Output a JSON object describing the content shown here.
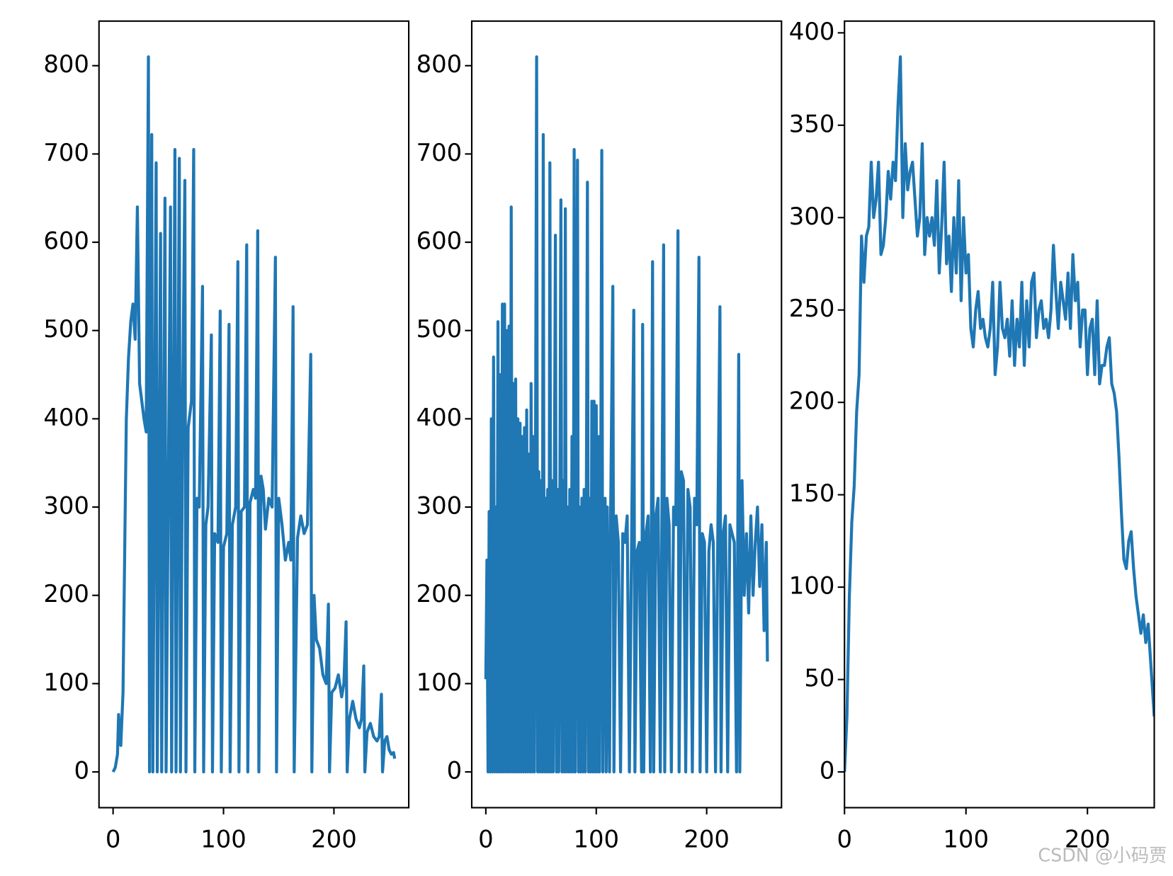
{
  "chart_data": [
    {
      "type": "line",
      "color": "#1f77b4",
      "xlim": [
        -12.75,
        267.75
      ],
      "ylim": [
        -40.5,
        850.5
      ],
      "xticks": [
        0,
        100,
        200
      ],
      "yticks": [
        0,
        100,
        200,
        300,
        400,
        500,
        600,
        700,
        800
      ],
      "x": [
        0,
        2,
        4,
        5,
        7,
        9,
        11,
        12,
        14,
        16,
        18,
        20,
        22,
        24,
        26,
        28,
        30,
        32,
        33,
        35,
        36,
        39,
        40,
        43,
        44,
        47,
        48,
        52,
        53,
        56,
        57,
        60,
        61,
        63,
        65,
        66,
        68,
        71,
        73,
        74,
        76,
        78,
        81,
        82,
        84,
        86,
        89,
        90,
        92,
        95,
        97,
        98,
        100,
        103,
        105,
        106,
        108,
        111,
        113,
        114,
        116,
        119,
        121,
        122,
        124,
        127,
        129,
        131,
        132,
        134,
        136,
        138,
        141,
        144,
        147,
        148,
        150,
        153,
        156,
        159,
        161,
        163,
        164,
        167,
        170,
        173,
        176,
        179,
        180,
        182,
        184,
        187,
        190,
        193,
        195,
        196,
        198,
        201,
        204,
        207,
        209,
        211,
        212,
        214,
        217,
        220,
        223,
        225,
        227,
        228,
        230,
        233,
        236,
        239,
        241,
        243,
        244,
        246,
        248,
        250,
        252,
        254,
        255
      ],
      "values": [
        0,
        5,
        20,
        65,
        30,
        90,
        300,
        400,
        470,
        510,
        530,
        490,
        640,
        440,
        420,
        400,
        385,
        810,
        0,
        722,
        0,
        690,
        0,
        610,
        0,
        650,
        0,
        640,
        0,
        705,
        0,
        695,
        0,
        420,
        670,
        0,
        390,
        420,
        705,
        0,
        310,
        300,
        550,
        0,
        280,
        300,
        495,
        0,
        270,
        260,
        522,
        0,
        255,
        270,
        507,
        0,
        280,
        300,
        578,
        0,
        295,
        300,
        597,
        0,
        305,
        320,
        310,
        613,
        0,
        335,
        320,
        275,
        310,
        300,
        583,
        0,
        310,
        280,
        240,
        260,
        240,
        527,
        0,
        265,
        290,
        270,
        280,
        473,
        0,
        200,
        150,
        140,
        110,
        100,
        190,
        0,
        90,
        95,
        110,
        85,
        100,
        170,
        0,
        60,
        80,
        60,
        50,
        60,
        120,
        0,
        45,
        55,
        40,
        35,
        40,
        88,
        0,
        35,
        40,
        25,
        20,
        22,
        15
      ]
    },
    {
      "type": "line",
      "color": "#1f77b4",
      "xlim": [
        -12.75,
        267.75
      ],
      "ylim": [
        -40.5,
        850.5
      ],
      "xticks": [
        0,
        100,
        200
      ],
      "yticks": [
        0,
        100,
        200,
        300,
        400,
        500,
        600,
        700,
        800
      ],
      "x": [
        0,
        1,
        2,
        3,
        4,
        5,
        6,
        7,
        8,
        9,
        10,
        11,
        12,
        13,
        14,
        15,
        16,
        17,
        18,
        19,
        20,
        21,
        22,
        23,
        24,
        25,
        26,
        27,
        28,
        29,
        30,
        31,
        32,
        33,
        34,
        35,
        36,
        37,
        38,
        39,
        40,
        41,
        42,
        43,
        44,
        45,
        46,
        47,
        48,
        49,
        50,
        51,
        52,
        53,
        54,
        55,
        56,
        57,
        58,
        59,
        60,
        61,
        62,
        63,
        64,
        65,
        66,
        67,
        68,
        69,
        70,
        71,
        72,
        73,
        74,
        75,
        76,
        77,
        78,
        79,
        80,
        81,
        82,
        83,
        84,
        85,
        86,
        87,
        88,
        89,
        90,
        91,
        92,
        93,
        94,
        95,
        96,
        97,
        98,
        99,
        100,
        101,
        102,
        103,
        104,
        105,
        106,
        107,
        108,
        109,
        110,
        112,
        113,
        115,
        116,
        118,
        120,
        122,
        124,
        126,
        128,
        130,
        132,
        134,
        135,
        137,
        139,
        141,
        142,
        143,
        145,
        147,
        149,
        151,
        152,
        154,
        156,
        158,
        161,
        162,
        164,
        166,
        168,
        170,
        172,
        174,
        175,
        177,
        179,
        181,
        183,
        185,
        187,
        189,
        191,
        193,
        194,
        196,
        198,
        200,
        202,
        204,
        206,
        208,
        210,
        212,
        213,
        215,
        217,
        219,
        221,
        223,
        225,
        227,
        229,
        230,
        232,
        234,
        236,
        238,
        240,
        242,
        244,
        246,
        248,
        250,
        252,
        254,
        255
      ],
      "values": [
        105,
        240,
        0,
        295,
        0,
        400,
        0,
        470,
        0,
        300,
        0,
        510,
        0,
        450,
        0,
        530,
        0,
        530,
        0,
        500,
        0,
        505,
        0,
        640,
        0,
        440,
        0,
        445,
        0,
        400,
        0,
        395,
        0,
        380,
        0,
        390,
        0,
        410,
        0,
        360,
        0,
        440,
        0,
        380,
        0,
        360,
        810,
        0,
        340,
        0,
        330,
        0,
        722,
        0,
        310,
        0,
        320,
        0,
        690,
        0,
        330,
        0,
        300,
        608,
        0,
        320,
        0,
        300,
        648,
        0,
        330,
        0,
        638,
        0,
        300,
        0,
        320,
        0,
        380,
        0,
        705,
        0,
        320,
        693,
        0,
        300,
        0,
        310,
        0,
        320,
        0,
        300,
        668,
        0,
        310,
        0,
        420,
        0,
        420,
        0,
        415,
        0,
        380,
        0,
        300,
        704,
        0,
        300,
        310,
        0,
        300,
        0,
        290,
        550,
        0,
        290,
        260,
        0,
        270,
        260,
        290,
        0,
        260,
        523,
        0,
        250,
        260,
        0,
        507,
        0,
        270,
        290,
        0,
        578,
        0,
        290,
        310,
        0,
        597,
        0,
        310,
        280,
        0,
        300,
        280,
        613,
        0,
        340,
        330,
        0,
        320,
        300,
        0,
        310,
        280,
        583,
        0,
        270,
        260,
        0,
        250,
        280,
        260,
        0,
        260,
        527,
        0,
        270,
        290,
        0,
        280,
        270,
        260,
        0,
        473,
        0,
        330,
        200,
        270,
        180,
        290,
        200,
        260,
        300,
        210,
        280,
        160,
        260,
        125
      ]
    },
    {
      "type": "line",
      "color": "#1f77b4",
      "xlim": [
        0,
        255
      ],
      "ylim": [
        -19.35,
        406.35
      ],
      "xticks": [
        0,
        100,
        200
      ],
      "yticks": [
        0,
        50,
        100,
        150,
        200,
        250,
        300,
        350,
        400
      ],
      "x": [
        0,
        2,
        4,
        6,
        8,
        10,
        12,
        14,
        16,
        18,
        20,
        22,
        24,
        26,
        28,
        30,
        32,
        34,
        36,
        38,
        40,
        42,
        44,
        46,
        48,
        50,
        52,
        54,
        56,
        58,
        60,
        62,
        64,
        66,
        68,
        70,
        72,
        74,
        76,
        78,
        80,
        82,
        84,
        86,
        88,
        90,
        92,
        94,
        96,
        98,
        100,
        102,
        104,
        106,
        108,
        110,
        112,
        114,
        116,
        118,
        120,
        122,
        124,
        126,
        128,
        130,
        132,
        134,
        136,
        138,
        140,
        142,
        144,
        146,
        148,
        150,
        152,
        154,
        156,
        158,
        160,
        162,
        164,
        166,
        168,
        170,
        172,
        174,
        176,
        178,
        180,
        182,
        184,
        186,
        188,
        190,
        192,
        194,
        196,
        198,
        200,
        202,
        204,
        206,
        208,
        210,
        212,
        214,
        216,
        218,
        220,
        222,
        224,
        226,
        228,
        230,
        232,
        234,
        236,
        238,
        240,
        242,
        244,
        246,
        248,
        250,
        252,
        254,
        255
      ],
      "values": [
        0,
        30,
        95,
        135,
        155,
        195,
        215,
        290,
        265,
        290,
        295,
        330,
        300,
        310,
        330,
        280,
        285,
        300,
        325,
        310,
        330,
        320,
        360,
        387,
        300,
        340,
        315,
        325,
        330,
        310,
        290,
        300,
        340,
        280,
        300,
        290,
        300,
        285,
        320,
        270,
        295,
        330,
        275,
        290,
        260,
        300,
        270,
        320,
        255,
        300,
        270,
        280,
        240,
        230,
        250,
        260,
        240,
        245,
        235,
        230,
        240,
        265,
        215,
        230,
        265,
        240,
        235,
        245,
        225,
        255,
        220,
        245,
        230,
        265,
        220,
        255,
        230,
        265,
        270,
        235,
        250,
        255,
        240,
        245,
        235,
        250,
        285,
        260,
        240,
        265,
        255,
        245,
        270,
        240,
        280,
        255,
        265,
        230,
        250,
        250,
        215,
        240,
        245,
        215,
        255,
        210,
        220,
        220,
        230,
        235,
        210,
        205,
        195,
        170,
        140,
        115,
        110,
        125,
        130,
        110,
        95,
        85,
        75,
        85,
        70,
        80,
        60,
        40,
        30
      ]
    }
  ],
  "watermark": "CSDN @小码贾"
}
